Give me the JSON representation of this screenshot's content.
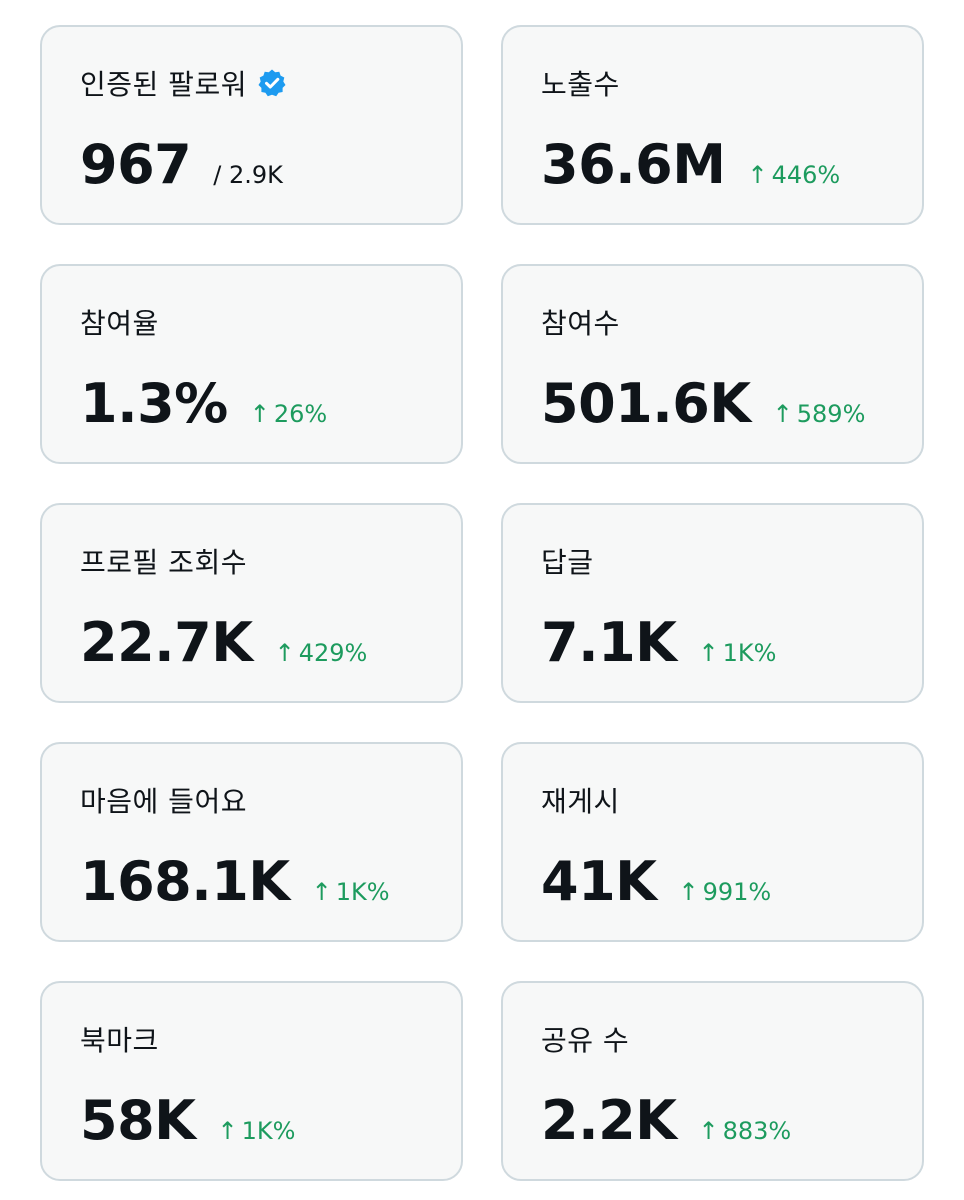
{
  "metrics": [
    {
      "label": "인증된 팔로워",
      "value": "967",
      "total": "/ 2.9K",
      "verified": true
    },
    {
      "label": "노출수",
      "value": "36.6M",
      "change": "446%"
    },
    {
      "label": "참여율",
      "value": "1.3%",
      "change": "26%"
    },
    {
      "label": "참여수",
      "value": "501.6K",
      "change": "589%"
    },
    {
      "label": "프로필 조회수",
      "value": "22.7K",
      "change": "429%"
    },
    {
      "label": "답글",
      "value": "7.1K",
      "change": "1K%"
    },
    {
      "label": "마음에 들어요",
      "value": "168.1K",
      "change": "1K%"
    },
    {
      "label": "재게시",
      "value": "41K",
      "change": "991%"
    },
    {
      "label": "북마크",
      "value": "58K",
      "change": "1K%"
    },
    {
      "label": "공유 수",
      "value": "2.2K",
      "change": "883%"
    }
  ],
  "change_arrow": "↑",
  "colors": {
    "card_bg": "#f7f8f8",
    "card_border": "#cfd9de",
    "text": "#0f1419",
    "positive": "#1d9b5e",
    "verified": "#1d9bf0"
  },
  "icons": {
    "verified": "verified-badge-icon",
    "change": "arrow-up-icon"
  }
}
